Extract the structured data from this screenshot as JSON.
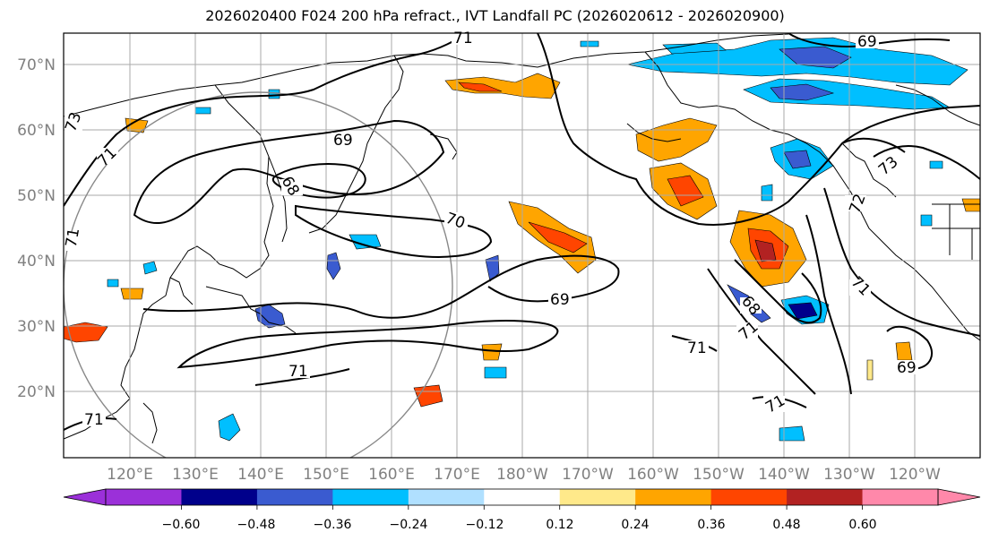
{
  "title": "2026020400 F024 200 hPa refract., IVT Landfall PC (2026020612 - 2026020900)",
  "map": {
    "lat_labels": [
      "70°N",
      "60°N",
      "50°N",
      "40°N",
      "30°N",
      "20°N"
    ],
    "lon_labels": [
      "120°E",
      "130°E",
      "140°E",
      "150°E",
      "160°E",
      "170°E",
      "180°W",
      "170°W",
      "160°W",
      "150°W",
      "140°W",
      "130°W",
      "120°W"
    ],
    "contour_labels": [
      "71",
      "69",
      "73",
      "71",
      "68",
      "70",
      "69",
      "71",
      "68",
      "71",
      "71",
      "69",
      "71",
      "73",
      "72",
      "71",
      "69",
      "71",
      "71"
    ]
  },
  "colorbar": {
    "tick_labels": [
      "−0.60",
      "−0.48",
      "−0.36",
      "−0.24",
      "−0.12",
      "0.12",
      "0.24",
      "0.36",
      "0.48",
      "0.60"
    ],
    "colors": [
      "#9b30d9",
      "#00008b",
      "#3a5bd0",
      "#00bfff",
      "#b0e0ff",
      "#ffffff",
      "#ffe98a",
      "#ffa500",
      "#ff4500",
      "#b22222",
      "#ff88aa"
    ]
  }
}
